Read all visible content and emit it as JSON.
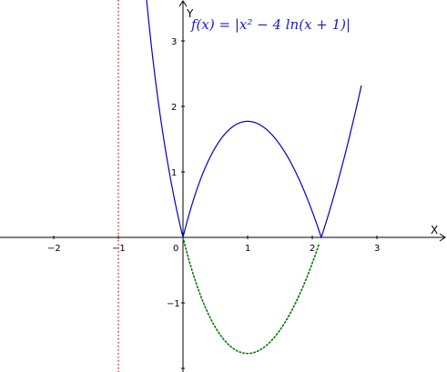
{
  "chart_data": {
    "type": "line",
    "formula": "f(x) = |x² − 4 ln(x + 1)|",
    "xlabel": "X",
    "ylabel": "Y",
    "xlim": [
      -2.8,
      3.9
    ],
    "ylim": [
      -2.0,
      3.6
    ],
    "x_ticks": [
      "−2",
      "−1",
      "0",
      "1",
      "2",
      "3"
    ],
    "x_tick_values": [
      -2,
      -1,
      0,
      1,
      2,
      3
    ],
    "y_ticks": [
      "3",
      "2",
      "1",
      "−1"
    ],
    "y_tick_values": [
      3,
      2,
      1,
      -1
    ],
    "series": [
      {
        "style": "solid",
        "color": "#0000cc",
        "expression": "|x^2 - 4 ln(x+1)|",
        "domain": [
          -0.6,
          2.76
        ]
      },
      {
        "style": "dotted",
        "color": "#007700",
        "expression": "x^2 - 4 ln(x+1)",
        "domain": [
          0,
          2.1
        ]
      }
    ],
    "asymptote": {
      "x": -1,
      "style": "dotted",
      "color": "#dd0000"
    },
    "grid": false,
    "legend": "none"
  }
}
